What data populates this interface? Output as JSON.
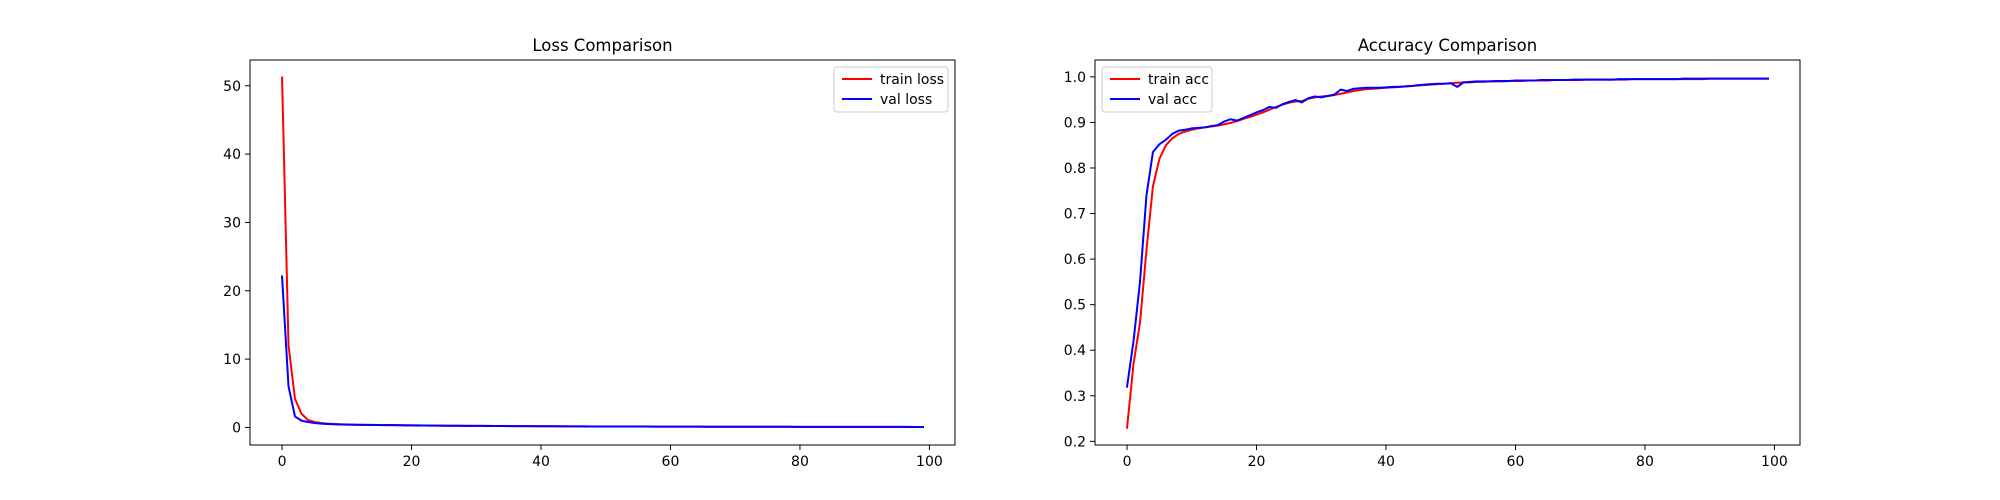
{
  "chart_data": [
    {
      "type": "line",
      "title": "Loss Comparison",
      "xlabel": "",
      "ylabel": "",
      "xlim": [
        -4.95,
        103.95
      ],
      "ylim": [
        -2.57,
        53.77
      ],
      "xticks": [
        0,
        20,
        40,
        60,
        80,
        100
      ],
      "yticks": [
        0,
        10,
        20,
        30,
        40,
        50
      ],
      "grid": false,
      "legend": "top-right",
      "x": [
        0,
        1,
        2,
        3,
        4,
        5,
        6,
        7,
        8,
        9,
        10,
        11,
        12,
        13,
        14,
        15,
        16,
        17,
        18,
        19,
        20,
        21,
        22,
        23,
        24,
        25,
        26,
        27,
        28,
        29,
        30,
        31,
        32,
        33,
        34,
        35,
        36,
        37,
        38,
        39,
        40,
        41,
        42,
        43,
        44,
        45,
        46,
        47,
        48,
        49,
        50,
        51,
        52,
        53,
        54,
        55,
        56,
        57,
        58,
        59,
        60,
        61,
        62,
        63,
        64,
        65,
        66,
        67,
        68,
        69,
        70,
        71,
        72,
        73,
        74,
        75,
        76,
        77,
        78,
        79,
        80,
        81,
        82,
        83,
        84,
        85,
        86,
        87,
        88,
        89,
        90,
        91,
        92,
        93,
        94,
        95,
        96,
        97,
        98,
        99
      ],
      "series": [
        {
          "name": "train loss",
          "color": "#ff0000",
          "values": [
            51.2,
            12.0,
            4.2,
            2.0,
            1.1,
            0.8,
            0.65,
            0.55,
            0.5,
            0.46,
            0.43,
            0.41,
            0.39,
            0.38,
            0.37,
            0.36,
            0.35,
            0.34,
            0.33,
            0.32,
            0.31,
            0.3,
            0.29,
            0.28,
            0.27,
            0.26,
            0.25,
            0.245,
            0.24,
            0.235,
            0.23,
            0.225,
            0.22,
            0.215,
            0.21,
            0.205,
            0.2,
            0.195,
            0.19,
            0.185,
            0.18,
            0.175,
            0.17,
            0.165,
            0.16,
            0.155,
            0.15,
            0.148,
            0.146,
            0.144,
            0.142,
            0.14,
            0.138,
            0.136,
            0.134,
            0.132,
            0.13,
            0.128,
            0.126,
            0.124,
            0.122,
            0.12,
            0.118,
            0.116,
            0.114,
            0.112,
            0.11,
            0.108,
            0.106,
            0.104,
            0.102,
            0.1,
            0.099,
            0.098,
            0.097,
            0.096,
            0.095,
            0.094,
            0.093,
            0.092,
            0.091,
            0.09,
            0.089,
            0.088,
            0.087,
            0.086,
            0.085,
            0.084,
            0.083,
            0.082,
            0.081,
            0.08,
            0.079,
            0.078,
            0.077,
            0.076,
            0.075,
            0.074,
            0.073,
            0.072
          ]
        },
        {
          "name": "val loss",
          "color": "#0000ff",
          "values": [
            22.1,
            6.0,
            1.6,
            1.0,
            0.8,
            0.65,
            0.55,
            0.5,
            0.46,
            0.43,
            0.41,
            0.39,
            0.38,
            0.37,
            0.36,
            0.35,
            0.34,
            0.33,
            0.32,
            0.31,
            0.3,
            0.29,
            0.28,
            0.27,
            0.26,
            0.25,
            0.245,
            0.24,
            0.235,
            0.23,
            0.225,
            0.22,
            0.215,
            0.21,
            0.205,
            0.2,
            0.195,
            0.19,
            0.185,
            0.18,
            0.175,
            0.17,
            0.165,
            0.16,
            0.155,
            0.15,
            0.148,
            0.146,
            0.144,
            0.142,
            0.14,
            0.138,
            0.136,
            0.134,
            0.132,
            0.13,
            0.128,
            0.126,
            0.124,
            0.122,
            0.12,
            0.118,
            0.116,
            0.114,
            0.112,
            0.11,
            0.108,
            0.106,
            0.104,
            0.102,
            0.1,
            0.099,
            0.098,
            0.097,
            0.096,
            0.095,
            0.094,
            0.093,
            0.092,
            0.091,
            0.09,
            0.089,
            0.088,
            0.087,
            0.086,
            0.085,
            0.084,
            0.083,
            0.082,
            0.081,
            0.08,
            0.079,
            0.078,
            0.077,
            0.076,
            0.075,
            0.074,
            0.073,
            0.072,
            0.071
          ]
        }
      ]
    },
    {
      "type": "line",
      "title": "Accuracy Comparison",
      "xlabel": "",
      "ylabel": "",
      "xlim": [
        -4.95,
        103.95
      ],
      "ylim": [
        0.192,
        1.037
      ],
      "xticks": [
        0,
        20,
        40,
        60,
        80,
        100
      ],
      "yticks": [
        0.2,
        0.3,
        0.4,
        0.5,
        0.6,
        0.7,
        0.8,
        0.9,
        1.0
      ],
      "ytick_labels": [
        "0.2",
        "0.3",
        "0.4",
        "0.5",
        "0.6",
        "0.7",
        "0.8",
        "0.9",
        "1.0"
      ],
      "grid": false,
      "legend": "top-left",
      "x": [
        0,
        1,
        2,
        3,
        4,
        5,
        6,
        7,
        8,
        9,
        10,
        11,
        12,
        13,
        14,
        15,
        16,
        17,
        18,
        19,
        20,
        21,
        22,
        23,
        24,
        25,
        26,
        27,
        28,
        29,
        30,
        31,
        32,
        33,
        34,
        35,
        36,
        37,
        38,
        39,
        40,
        41,
        42,
        43,
        44,
        45,
        46,
        47,
        48,
        49,
        50,
        51,
        52,
        53,
        54,
        55,
        56,
        57,
        58,
        59,
        60,
        61,
        62,
        63,
        64,
        65,
        66,
        67,
        68,
        69,
        70,
        71,
        72,
        73,
        74,
        75,
        76,
        77,
        78,
        79,
        80,
        81,
        82,
        83,
        84,
        85,
        86,
        87,
        88,
        89,
        90,
        91,
        92,
        93,
        94,
        95,
        96,
        97,
        98,
        99
      ],
      "series": [
        {
          "name": "train acc",
          "color": "#ff0000",
          "values": [
            0.23,
            0.37,
            0.46,
            0.62,
            0.76,
            0.82,
            0.85,
            0.865,
            0.875,
            0.88,
            0.884,
            0.887,
            0.889,
            0.891,
            0.893,
            0.896,
            0.899,
            0.903,
            0.908,
            0.912,
            0.917,
            0.922,
            0.928,
            0.934,
            0.939,
            0.943,
            0.946,
            0.947,
            0.952,
            0.955,
            0.957,
            0.958,
            0.96,
            0.963,
            0.966,
            0.969,
            0.971,
            0.973,
            0.974,
            0.975,
            0.976,
            0.977,
            0.978,
            0.979,
            0.98,
            0.981,
            0.982,
            0.983,
            0.984,
            0.985,
            0.986,
            0.987,
            0.988,
            0.988,
            0.989,
            0.989,
            0.99,
            0.99,
            0.99,
            0.991,
            0.991,
            0.991,
            0.992,
            0.992,
            0.992,
            0.992,
            0.993,
            0.993,
            0.993,
            0.993,
            0.993,
            0.994,
            0.994,
            0.994,
            0.994,
            0.994,
            0.994,
            0.994,
            0.995,
            0.995,
            0.995,
            0.995,
            0.995,
            0.995,
            0.995,
            0.995,
            0.995,
            0.995,
            0.995,
            0.995,
            0.996,
            0.996,
            0.996,
            0.996,
            0.996,
            0.996,
            0.996,
            0.996,
            0.996,
            0.996
          ]
        },
        {
          "name": "val acc",
          "color": "#0000ff",
          "values": [
            0.32,
            0.42,
            0.55,
            0.74,
            0.835,
            0.852,
            0.862,
            0.875,
            0.882,
            0.884,
            0.887,
            0.888,
            0.889,
            0.892,
            0.894,
            0.902,
            0.907,
            0.904,
            0.91,
            0.916,
            0.922,
            0.927,
            0.934,
            0.932,
            0.94,
            0.945,
            0.949,
            0.944,
            0.953,
            0.957,
            0.955,
            0.958,
            0.961,
            0.972,
            0.969,
            0.974,
            0.975,
            0.976,
            0.976,
            0.976,
            0.977,
            0.978,
            0.978,
            0.979,
            0.98,
            0.982,
            0.983,
            0.984,
            0.985,
            0.985,
            0.986,
            0.978,
            0.988,
            0.989,
            0.99,
            0.99,
            0.99,
            0.991,
            0.991,
            0.991,
            0.992,
            0.992,
            0.992,
            0.992,
            0.993,
            0.993,
            0.993,
            0.993,
            0.993,
            0.994,
            0.994,
            0.994,
            0.994,
            0.994,
            0.994,
            0.994,
            0.995,
            0.995,
            0.995,
            0.995,
            0.995,
            0.995,
            0.995,
            0.995,
            0.995,
            0.995,
            0.996,
            0.996,
            0.996,
            0.996,
            0.996,
            0.996,
            0.996,
            0.996,
            0.996,
            0.996,
            0.996,
            0.996,
            0.996,
            0.996
          ]
        }
      ]
    }
  ]
}
